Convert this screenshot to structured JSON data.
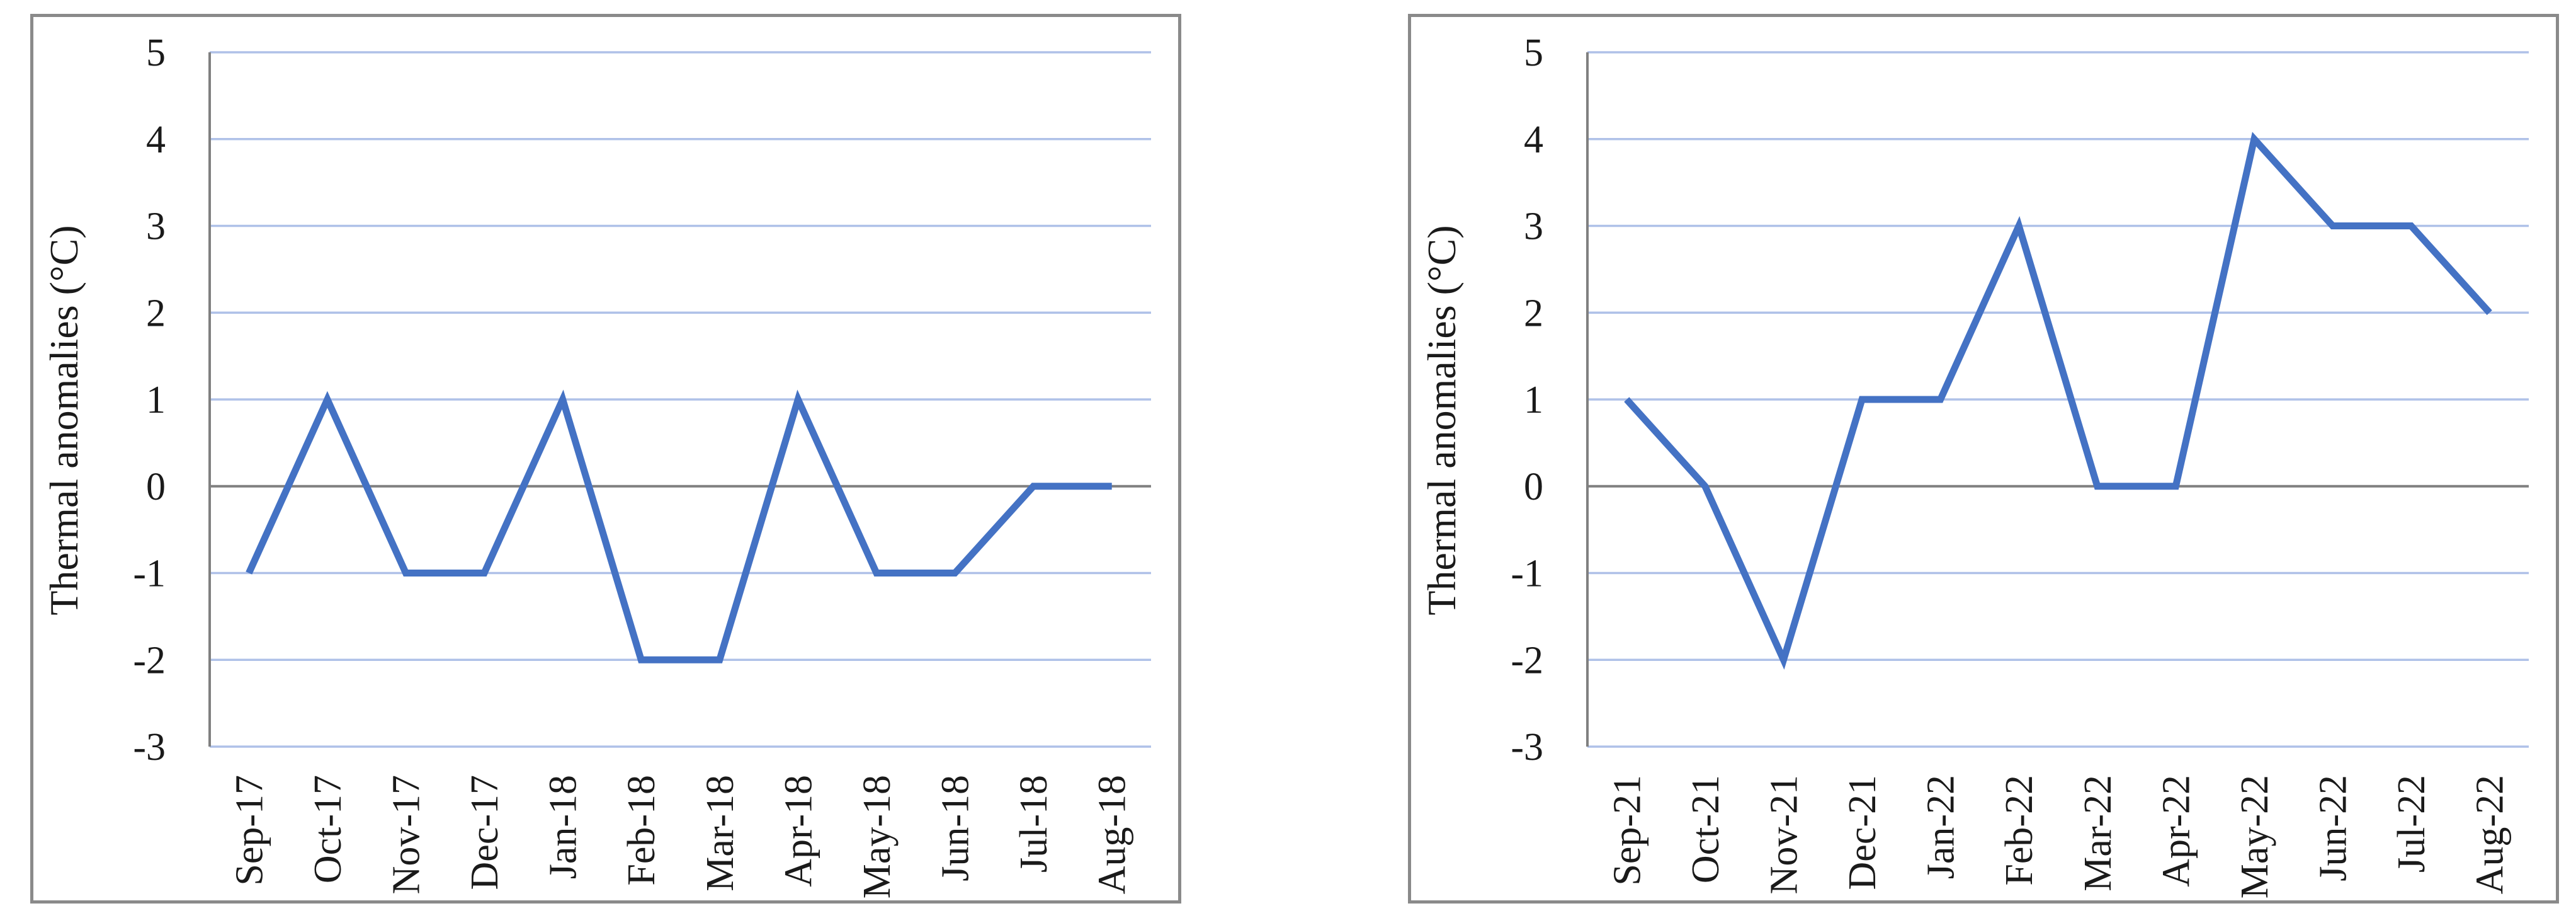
{
  "figure": {
    "description": "Two side-by-side line charts of monthly thermal anomalies",
    "background": "#FFFFFF"
  },
  "styles": {
    "line_color": "#4472C4",
    "gridline_color": "#AFC1E8",
    "zero_line_color": "#808080",
    "axis_line_color": "#808080",
    "panel_border_color": "#8A8A8A",
    "text_color": "#1A1A1A"
  },
  "chart_data": [
    {
      "type": "line",
      "title": "",
      "xlabel": "",
      "ylabel": "Thermal anomalies (°C)",
      "categories": [
        "Sep-17",
        "Oct-17",
        "Nov-17",
        "Dec-17",
        "Jan-18",
        "Feb-18",
        "Mar-18",
        "Apr-18",
        "May-18",
        "Jun-18",
        "Jul-18",
        "Aug-18"
      ],
      "series": [
        {
          "name": "Thermal anomalies 2017-2018",
          "values": [
            -1,
            1,
            -1,
            -1,
            1,
            -2,
            -2,
            1,
            -1,
            -1,
            0,
            0
          ]
        }
      ],
      "ylim": [
        -3,
        5
      ],
      "yticks": [
        5,
        4,
        3,
        2,
        1,
        0,
        -1,
        -2,
        -3
      ],
      "grid": "horizontal",
      "legend_position": "none",
      "x_label_rotation_deg": -90
    },
    {
      "type": "line",
      "title": "",
      "xlabel": "",
      "ylabel": "Thermal anomalies (°C)",
      "categories": [
        "Sep-21",
        "Oct-21",
        "Nov-21",
        "Dec-21",
        "Jan-22",
        "Feb-22",
        "Mar-22",
        "Apr-22",
        "May-22",
        "Jun-22",
        "Jul-22",
        "Aug-22"
      ],
      "series": [
        {
          "name": "Thermal anomalies 2021-2022",
          "values": [
            1,
            0,
            -2,
            1,
            1,
            3,
            0,
            0,
            4,
            3,
            3,
            2
          ]
        }
      ],
      "ylim": [
        -3,
        5
      ],
      "yticks": [
        5,
        4,
        3,
        2,
        1,
        0,
        -1,
        -2,
        -3
      ],
      "grid": "horizontal",
      "legend_position": "none",
      "x_label_rotation_deg": -90
    }
  ]
}
